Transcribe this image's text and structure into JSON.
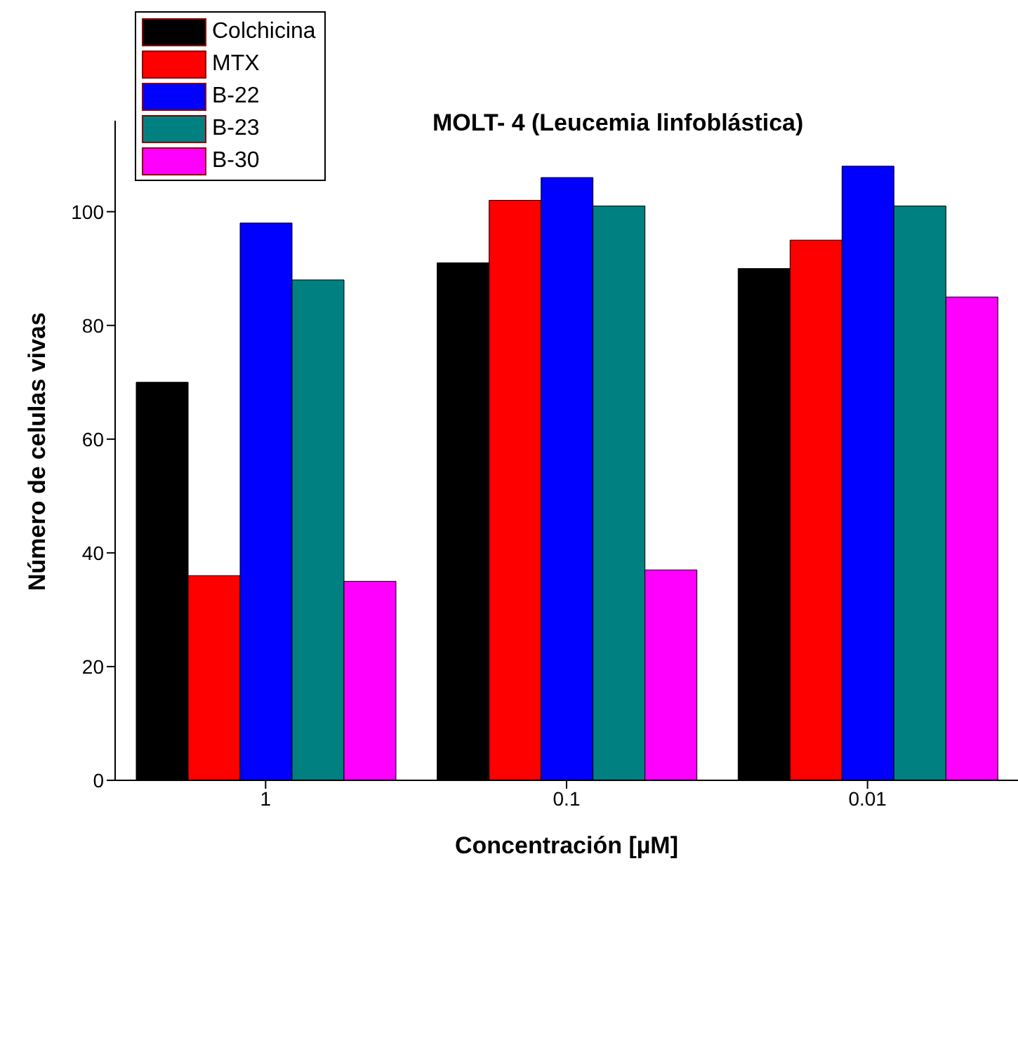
{
  "chart_data": {
    "type": "bar",
    "title": "MOLT- 4 (Leucemia linfoblástica)",
    "xlabel": "Concentración [µM]",
    "ylabel": "Número de celulas vivas",
    "categories": [
      "1",
      "0.1",
      "0.01"
    ],
    "series": [
      {
        "name": "Colchicina",
        "color": "#000000",
        "values": [
          70,
          91,
          90
        ]
      },
      {
        "name": "MTX",
        "color": "#ff0000",
        "values": [
          36,
          102,
          95
        ]
      },
      {
        "name": "B-22",
        "color": "#0000ff",
        "values": [
          98,
          106,
          108
        ]
      },
      {
        "name": "B-23",
        "color": "#008080",
        "values": [
          88,
          101,
          101
        ]
      },
      {
        "name": "B-30",
        "color": "#ff00ff",
        "values": [
          35,
          37,
          85
        ]
      }
    ],
    "ylim": [
      0,
      116
    ],
    "yticks": [
      0,
      20,
      40,
      60,
      80,
      100
    ],
    "legend": "top left"
  }
}
